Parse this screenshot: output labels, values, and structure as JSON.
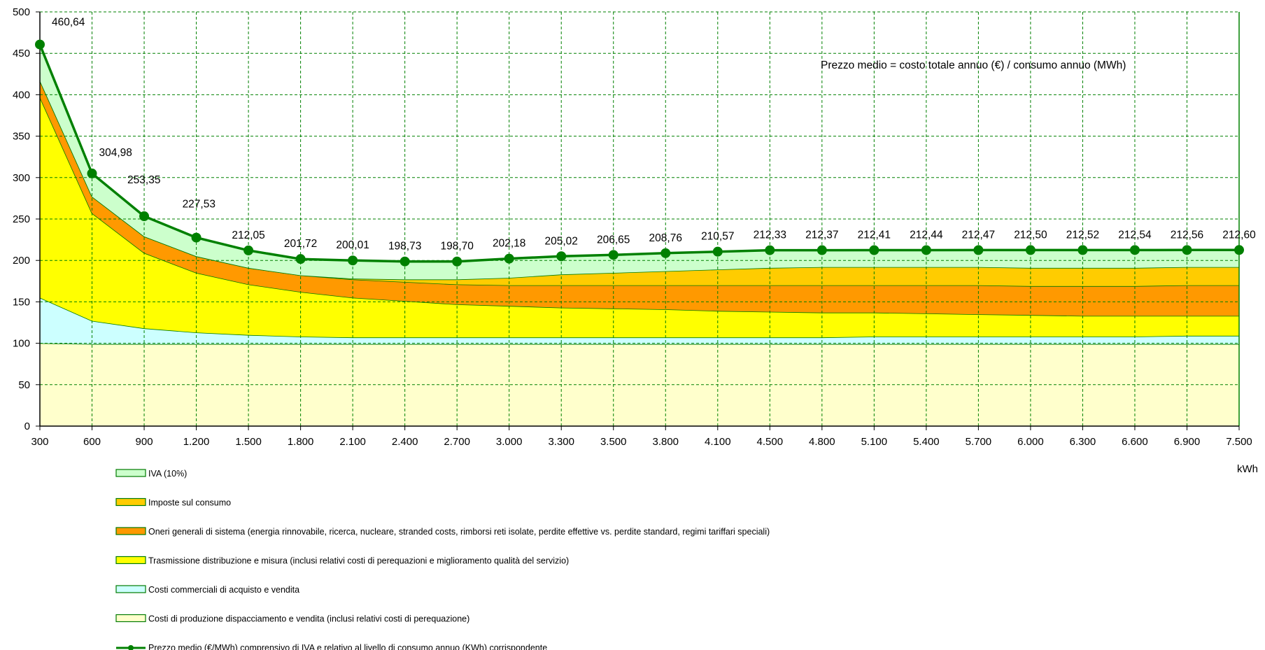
{
  "chart_data": {
    "type": "area",
    "stacked": true,
    "x_labels": [
      "300",
      "600",
      "900",
      "1.200",
      "1.500",
      "1.800",
      "2.100",
      "2.400",
      "2.700",
      "3.000",
      "3.300",
      "3.500",
      "3.800",
      "4.100",
      "4.500",
      "4.800",
      "5.100",
      "5.400",
      "5.700",
      "6.000",
      "6.300",
      "6.600",
      "6.900",
      "7.500"
    ],
    "xunit": "kWh",
    "ylim": [
      0,
      500
    ],
    "yticks": [
      0,
      50,
      100,
      150,
      200,
      250,
      300,
      350,
      400,
      450,
      500
    ],
    "grid": true,
    "note": "Prezzo medio = costo totale annuo (€) / consumo annuo (MWh)",
    "series": [
      {
        "name": "Costi di produzione dispacciamento e vendita (inclusi relativi costi di perequazione)",
        "color": "#ffffcc",
        "values": [
          100,
          99,
          99,
          99,
          99,
          99,
          99,
          99,
          99,
          99,
          99,
          99,
          99,
          99,
          99,
          99,
          99,
          99,
          99,
          99,
          99,
          99,
          99,
          99
        ]
      },
      {
        "name": "Costi commerciali di acquisto e vendita",
        "color": "#ccffff",
        "values": [
          55,
          28,
          19,
          14,
          11,
          9,
          8,
          8,
          8,
          8,
          8,
          8,
          8,
          8,
          8,
          8,
          9,
          9,
          9,
          9,
          9,
          9,
          10,
          10
        ]
      },
      {
        "name": "Trasmissione distribuzione e misura (inclusi relativi costi di perequazioni e miglioramento qualità del servizio)",
        "color": "#ffff00",
        "values": [
          242,
          130,
          91,
          72,
          61,
          54,
          48,
          44,
          40,
          38,
          36,
          35,
          34,
          32,
          31,
          30,
          29,
          28,
          27,
          26,
          25,
          25,
          24,
          24
        ]
      },
      {
        "name": "Oneri generali di sistema (energia rinnovabile, ricerca, nucleare, stranded costs, rimborsi reti isolate, perdite effettive vs. perdite standard, regimi tariffari speciali)",
        "color": "#ff9900",
        "values": [
          20,
          20,
          20,
          20,
          20,
          20,
          22,
          23,
          24,
          25,
          27,
          28,
          29,
          31,
          32,
          33,
          33,
          34,
          35,
          35,
          36,
          36,
          37,
          37
        ]
      },
      {
        "name": "Imposte sul consumo",
        "color": "#ffcc00",
        "values": [
          0,
          0,
          0,
          0,
          0,
          0,
          1,
          3,
          6,
          9,
          13,
          15,
          17,
          19,
          21,
          22,
          22,
          22,
          22,
          22,
          22,
          22,
          22,
          22
        ]
      },
      {
        "name": "IVA (10%)",
        "color": "#ccffcc",
        "values": [
          44,
          28,
          24,
          22,
          21,
          20,
          22,
          22,
          21,
          23,
          22,
          22,
          22,
          22,
          21,
          21,
          21,
          21,
          21,
          21,
          21,
          21,
          20,
          21
        ]
      }
    ],
    "line_series": {
      "name": "Prezzo medio (€/MWh) comprensivo di IVA e relativo al livello di consumo annuo (KWh) corrispondente",
      "color": "#008000",
      "values": [
        460.64,
        304.98,
        253.35,
        227.53,
        212.05,
        201.72,
        200.01,
        198.73,
        198.7,
        202.18,
        205.02,
        206.65,
        208.76,
        210.57,
        212.33,
        212.37,
        212.41,
        212.44,
        212.47,
        212.5,
        212.52,
        212.54,
        212.56,
        212.6
      ],
      "labels": [
        "460,64",
        "304,98",
        "253,35",
        "227,53",
        "212,05",
        "201,72",
        "200,01",
        "198,73",
        "198,70",
        "202,18",
        "205,02",
        "206,65",
        "208,76",
        "210,57",
        "212,33",
        "212,37",
        "212,41",
        "212,44",
        "212,47",
        "212,50",
        "212,52",
        "212,54",
        "212,56",
        "212,60"
      ]
    },
    "legend_order": [
      5,
      4,
      3,
      2,
      1,
      0
    ]
  }
}
